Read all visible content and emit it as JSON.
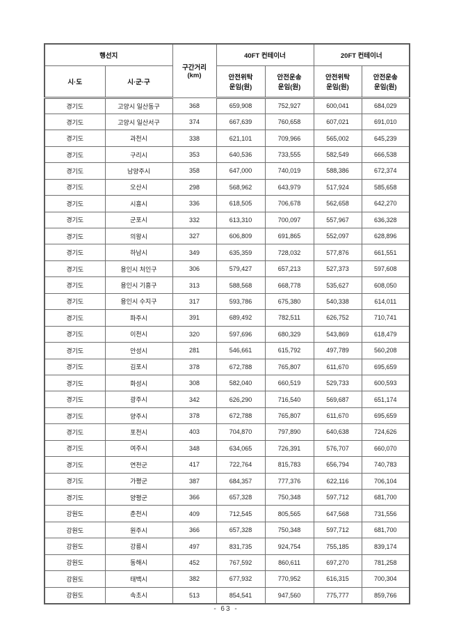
{
  "page": {
    "footer": "- 63 -"
  },
  "table": {
    "header": {
      "destination": "행선지",
      "sido": "시·도",
      "sigungu": "시·군·구",
      "distance": "구간거리\n(km)",
      "ft40": "40FT 컨테이너",
      "ft20": "20FT 컨테이너",
      "safe_consign_fare": "안전위탁\n운임(원)",
      "safe_transport_fare": "안전운송\n운임(원)"
    },
    "rows": [
      [
        "경기도",
        "고양시 일산동구",
        "368",
        "659,908",
        "752,927",
        "600,041",
        "684,029"
      ],
      [
        "경기도",
        "고양시 일산서구",
        "374",
        "667,639",
        "760,658",
        "607,021",
        "691,010"
      ],
      [
        "경기도",
        "과천시",
        "338",
        "621,101",
        "709,966",
        "565,002",
        "645,239"
      ],
      [
        "경기도",
        "구리시",
        "353",
        "640,536",
        "733,555",
        "582,549",
        "666,538"
      ],
      [
        "경기도",
        "남양주시",
        "358",
        "647,000",
        "740,019",
        "588,386",
        "672,374"
      ],
      [
        "경기도",
        "오산시",
        "298",
        "568,962",
        "643,979",
        "517,924",
        "585,658"
      ],
      [
        "경기도",
        "시흥시",
        "336",
        "618,505",
        "706,678",
        "562,658",
        "642,270"
      ],
      [
        "경기도",
        "군포시",
        "332",
        "613,310",
        "700,097",
        "557,967",
        "636,328"
      ],
      [
        "경기도",
        "의왕시",
        "327",
        "606,809",
        "691,865",
        "552,097",
        "628,896"
      ],
      [
        "경기도",
        "하남시",
        "349",
        "635,359",
        "728,032",
        "577,876",
        "661,551"
      ],
      [
        "경기도",
        "용인시 처인구",
        "306",
        "579,427",
        "657,213",
        "527,373",
        "597,608"
      ],
      [
        "경기도",
        "용인시 기흥구",
        "313",
        "588,568",
        "668,778",
        "535,627",
        "608,050"
      ],
      [
        "경기도",
        "용인시 수지구",
        "317",
        "593,786",
        "675,380",
        "540,338",
        "614,011"
      ],
      [
        "경기도",
        "파주시",
        "391",
        "689,492",
        "782,511",
        "626,752",
        "710,741"
      ],
      [
        "경기도",
        "이천시",
        "320",
        "597,696",
        "680,329",
        "543,869",
        "618,479"
      ],
      [
        "경기도",
        "안성시",
        "281",
        "546,661",
        "615,792",
        "497,789",
        "560,208"
      ],
      [
        "경기도",
        "김포시",
        "378",
        "672,788",
        "765,807",
        "611,670",
        "695,659"
      ],
      [
        "경기도",
        "화성시",
        "308",
        "582,040",
        "660,519",
        "529,733",
        "600,593"
      ],
      [
        "경기도",
        "광주시",
        "342",
        "626,290",
        "716,540",
        "569,687",
        "651,174"
      ],
      [
        "경기도",
        "양주시",
        "378",
        "672,788",
        "765,807",
        "611,670",
        "695,659"
      ],
      [
        "경기도",
        "포천시",
        "403",
        "704,870",
        "797,890",
        "640,638",
        "724,626"
      ],
      [
        "경기도",
        "여주시",
        "348",
        "634,065",
        "726,391",
        "576,707",
        "660,070"
      ],
      [
        "경기도",
        "연천군",
        "417",
        "722,764",
        "815,783",
        "656,794",
        "740,783"
      ],
      [
        "경기도",
        "가평군",
        "387",
        "684,357",
        "777,376",
        "622,116",
        "706,104"
      ],
      [
        "경기도",
        "양평군",
        "366",
        "657,328",
        "750,348",
        "597,712",
        "681,700"
      ],
      [
        "강원도",
        "춘천시",
        "409",
        "712,545",
        "805,565",
        "647,568",
        "731,556"
      ],
      [
        "강원도",
        "원주시",
        "366",
        "657,328",
        "750,348",
        "597,712",
        "681,700"
      ],
      [
        "강원도",
        "강릉시",
        "497",
        "831,735",
        "924,754",
        "755,185",
        "839,174"
      ],
      [
        "강원도",
        "동해시",
        "452",
        "767,592",
        "860,611",
        "697,270",
        "781,258"
      ],
      [
        "강원도",
        "태백시",
        "382",
        "677,932",
        "770,952",
        "616,315",
        "700,304"
      ],
      [
        "강원도",
        "속초시",
        "513",
        "854,541",
        "947,560",
        "775,777",
        "859,766"
      ]
    ]
  }
}
